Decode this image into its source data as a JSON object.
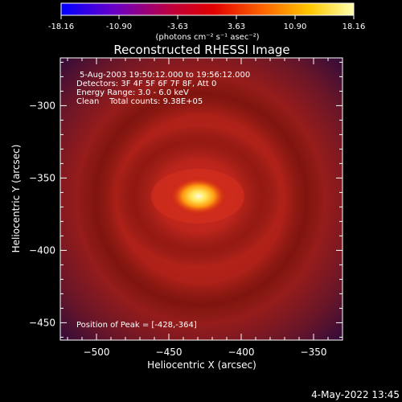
{
  "colorbar": {
    "tick_labels": [
      "-18.16",
      "-10.90",
      "-3.63",
      "3.63",
      "10.90",
      "18.16"
    ],
    "unit": "(photons cm⁻² s⁻¹ asec⁻²)",
    "range": [
      -18.16,
      18.16
    ]
  },
  "chart_data": {
    "type": "heatmap",
    "title": "Reconstructed RHESSI Image",
    "xlabel": "Heliocentric X (arcsec)",
    "ylabel": "Heliocentric Y (arcsec)",
    "xlim": [
      -525,
      -330
    ],
    "ylim": [
      -462,
      -267
    ],
    "xticks": [
      -500,
      -450,
      -400,
      -350
    ],
    "yticks": [
      -300,
      -350,
      -400,
      -450
    ],
    "xtick_labels": [
      "−500",
      "−450",
      "−400",
      "−350"
    ],
    "ytick_labels": [
      "−300",
      "−350",
      "−400",
      "−450"
    ],
    "peak": {
      "x": -428,
      "y": -364
    },
    "annotations": {
      "time_range": "5-Aug-2003 19:50:12.000 to 19:56:12.000",
      "detectors": "Detectors: 3F 4F 5F 6F 7F 8F, Att 0",
      "energy": "Energy Range: 3.0 - 6.0 keV",
      "clean": "Clean    Total counts: 9.38E+05",
      "peak_text": "Position of Peak = [-428,-364]"
    }
  },
  "footer": {
    "date": "4-May-2022 13:45"
  }
}
